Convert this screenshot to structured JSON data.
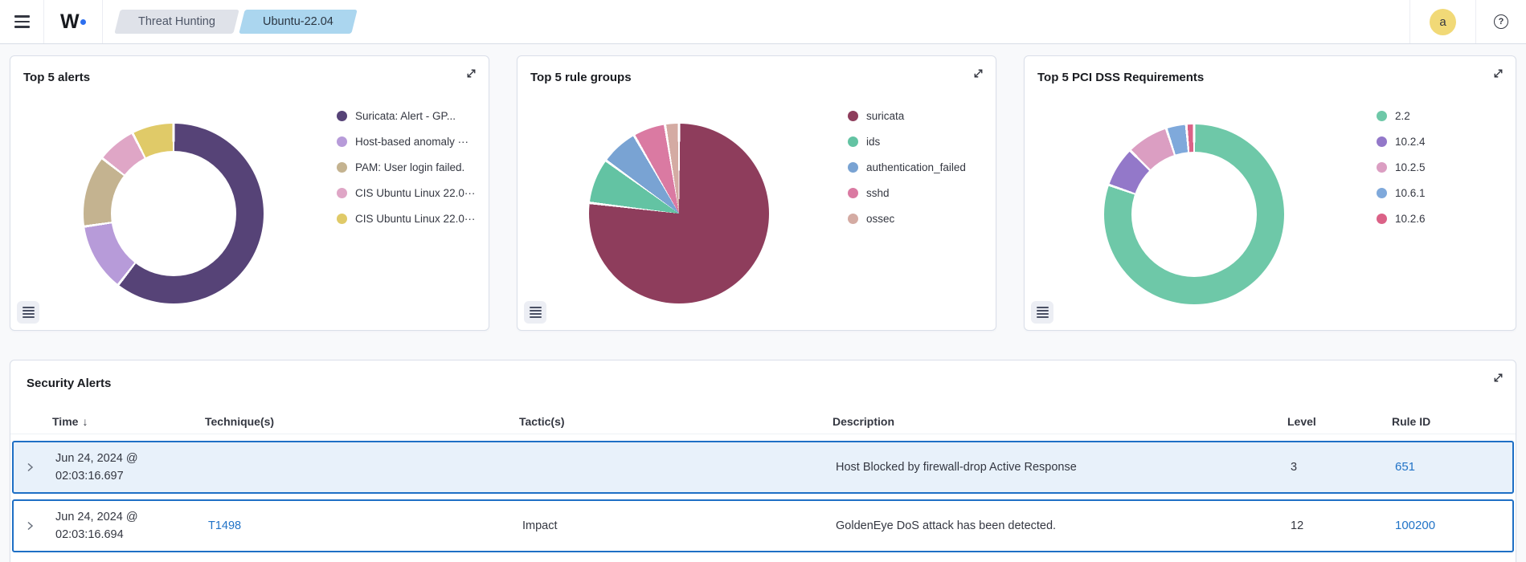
{
  "topbar": {
    "logo_text": "W",
    "breadcrumbs": [
      {
        "label": "Threat Hunting",
        "active": false
      },
      {
        "label": "Ubuntu-22.04",
        "active": true
      }
    ],
    "avatar_initial": "a",
    "help_glyph": "?"
  },
  "colors": {
    "accent_blue": "#2173c7",
    "row_border": "#1e6fc5",
    "row_highlight_bg": "#e8f1fa",
    "avatar_bg": "#f1d977",
    "breadcrumb_active_bg": "#abd6ef",
    "breadcrumb_inactive_bg": "#dfe2e9"
  },
  "chart_data": [
    {
      "type": "donut",
      "title": "Top 5 alerts",
      "legend_position": "right",
      "hole": 0.7,
      "series": [
        {
          "label": "Suricata: Alert - GP...",
          "value": 60.5,
          "color": "#564377"
        },
        {
          "label": "Host-based anomaly ···",
          "value": 12.2,
          "color": "#b79bd9"
        },
        {
          "label": "PAM: User login failed.",
          "value": 12.8,
          "color": "#c4b390"
        },
        {
          "label": "CIS Ubuntu Linux 22.0···",
          "value": 7.0,
          "color": "#dfa6c6"
        },
        {
          "label": "CIS Ubuntu Linux 22.0···",
          "value": 7.5,
          "color": "#e0ca68"
        }
      ]
    },
    {
      "type": "pie",
      "title": "Top 5 rule groups",
      "legend_position": "right",
      "hole": 0,
      "series": [
        {
          "label": "suricata",
          "value": 76.9,
          "color": "#8e3d5c"
        },
        {
          "label": "ids",
          "value": 8.1,
          "color": "#63c3a3"
        },
        {
          "label": "authentication_failed",
          "value": 6.7,
          "color": "#79a3d3"
        },
        {
          "label": "sshd",
          "value": 5.8,
          "color": "#da7aa2"
        },
        {
          "label": "ossec",
          "value": 2.5,
          "color": "#d4aba3"
        }
      ]
    },
    {
      "type": "donut",
      "title": "Top 5 PCI DSS Requirements",
      "legend_position": "right",
      "hole": 0.7,
      "series": [
        {
          "label": "2.2",
          "value": 80.3,
          "color": "#6ec8a8"
        },
        {
          "label": "10.2.4",
          "value": 7.2,
          "color": "#9378c9"
        },
        {
          "label": "10.2.5",
          "value": 7.5,
          "color": "#db9ec2"
        },
        {
          "label": "10.6.1",
          "value": 3.6,
          "color": "#7fa9db"
        },
        {
          "label": "10.2.6",
          "value": 1.4,
          "color": "#db6287"
        }
      ]
    }
  ],
  "alerts": {
    "title": "Security Alerts",
    "columns": [
      "Time",
      "Technique(s)",
      "Tactic(s)",
      "Description",
      "Level",
      "Rule ID"
    ],
    "sort": {
      "column": "Time",
      "direction": "desc"
    },
    "icons": {
      "sort_desc": "↓"
    },
    "rows": [
      {
        "time_date": "Jun 24, 2024 @",
        "time_clock": "02:03:16.697",
        "technique": "",
        "tactic": "",
        "description": "Host Blocked by firewall-drop Active Response",
        "level": "3",
        "rule_id": "651",
        "highlighted": true
      },
      {
        "time_date": "Jun 24, 2024 @",
        "time_clock": "02:03:16.694",
        "technique": "T1498",
        "tactic": "Impact",
        "description": "GoldenEye DoS attack has been detected.",
        "level": "12",
        "rule_id": "100200",
        "highlighted": false
      }
    ]
  }
}
